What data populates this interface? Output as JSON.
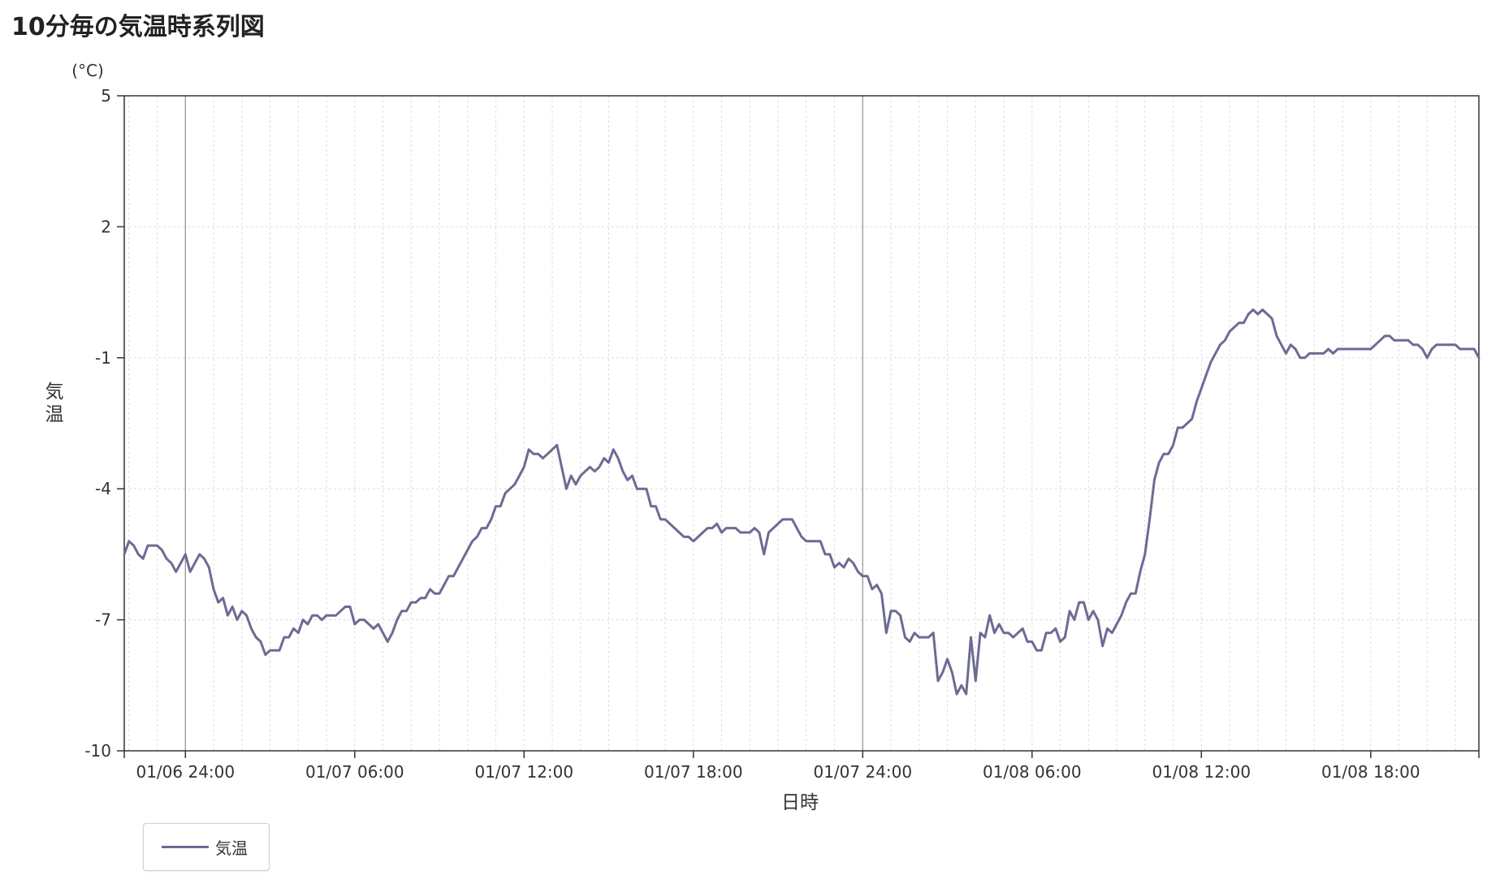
{
  "title": "10分毎の気温時系列図",
  "legend": {
    "label": "気温"
  },
  "chart_data": {
    "type": "line",
    "ylabel": "気温",
    "y_unit": "(°C)",
    "xlabel": "日時",
    "ylim": [
      -10,
      5
    ],
    "y_ticks": [
      5,
      2,
      -1,
      -4,
      -7,
      -10
    ],
    "x_start": "2024-01-06T21:50",
    "x_end": "2024-01-08T21:50",
    "x_interval_minutes": 10,
    "x_ticks": [
      {
        "time": "2024-01-07T00:00",
        "label": "01/06 24:00"
      },
      {
        "time": "2024-01-07T06:00",
        "label": "01/07 06:00"
      },
      {
        "time": "2024-01-07T12:00",
        "label": "01/07 12:00"
      },
      {
        "time": "2024-01-07T18:00",
        "label": "01/07 18:00"
      },
      {
        "time": "2024-01-08T00:00",
        "label": "01/07 24:00"
      },
      {
        "time": "2024-01-08T06:00",
        "label": "01/08 06:00"
      },
      {
        "time": "2024-01-08T12:00",
        "label": "01/08 12:00"
      },
      {
        "time": "2024-01-08T18:00",
        "label": "01/08 18:00"
      }
    ],
    "day_boundaries": [
      "2024-01-07T00:00",
      "2024-01-08T00:00"
    ],
    "grid": true,
    "legend_position": "bottom-left",
    "series": [
      {
        "name": "気温",
        "color": "#6b6b94",
        "values": [
          -5.5,
          -5.2,
          -5.3,
          -5.5,
          -5.6,
          -5.3,
          -5.3,
          -5.3,
          -5.4,
          -5.6,
          -5.7,
          -5.9,
          -5.7,
          -5.5,
          -5.9,
          -5.7,
          -5.5,
          -5.6,
          -5.8,
          -6.3,
          -6.6,
          -6.5,
          -6.9,
          -6.7,
          -7.0,
          -6.8,
          -6.9,
          -7.2,
          -7.4,
          -7.5,
          -7.8,
          -7.7,
          -7.7,
          -7.7,
          -7.4,
          -7.4,
          -7.2,
          -7.3,
          -7.0,
          -7.1,
          -6.9,
          -6.9,
          -7.0,
          -6.9,
          -6.9,
          -6.9,
          -6.8,
          -6.7,
          -6.7,
          -7.1,
          -7.0,
          -7.0,
          -7.1,
          -7.2,
          -7.1,
          -7.3,
          -7.5,
          -7.3,
          -7.0,
          -6.8,
          -6.8,
          -6.6,
          -6.6,
          -6.5,
          -6.5,
          -6.3,
          -6.4,
          -6.4,
          -6.2,
          -6.0,
          -6.0,
          -5.8,
          -5.6,
          -5.4,
          -5.2,
          -5.1,
          -4.9,
          -4.9,
          -4.7,
          -4.4,
          -4.4,
          -4.1,
          -4.0,
          -3.9,
          -3.7,
          -3.5,
          -3.1,
          -3.2,
          -3.2,
          -3.3,
          -3.2,
          -3.1,
          -3.0,
          -3.5,
          -4.0,
          -3.7,
          -3.9,
          -3.7,
          -3.6,
          -3.5,
          -3.6,
          -3.5,
          -3.3,
          -3.4,
          -3.1,
          -3.3,
          -3.6,
          -3.8,
          -3.7,
          -4.0,
          -4.0,
          -4.0,
          -4.4,
          -4.4,
          -4.7,
          -4.7,
          -4.8,
          -4.9,
          -5.0,
          -5.1,
          -5.1,
          -5.2,
          -5.1,
          -5.0,
          -4.9,
          -4.9,
          -4.8,
          -5.0,
          -4.9,
          -4.9,
          -4.9,
          -5.0,
          -5.0,
          -5.0,
          -4.9,
          -5.0,
          -5.5,
          -5.0,
          -4.9,
          -4.8,
          -4.7,
          -4.7,
          -4.7,
          -4.9,
          -5.1,
          -5.2,
          -5.2,
          -5.2,
          -5.2,
          -5.5,
          -5.5,
          -5.8,
          -5.7,
          -5.8,
          -5.6,
          -5.7,
          -5.9,
          -6.0,
          -6.0,
          -6.3,
          -6.2,
          -6.4,
          -7.3,
          -6.8,
          -6.8,
          -6.9,
          -7.4,
          -7.5,
          -7.3,
          -7.4,
          -7.4,
          -7.4,
          -7.3,
          -8.4,
          -8.2,
          -7.9,
          -8.2,
          -8.7,
          -8.5,
          -8.7,
          -7.4,
          -8.4,
          -7.3,
          -7.4,
          -6.9,
          -7.3,
          -7.1,
          -7.3,
          -7.3,
          -7.4,
          -7.3,
          -7.2,
          -7.5,
          -7.5,
          -7.7,
          -7.7,
          -7.3,
          -7.3,
          -7.2,
          -7.5,
          -7.4,
          -6.8,
          -7.0,
          -6.6,
          -6.6,
          -7.0,
          -6.8,
          -7.0,
          -7.6,
          -7.2,
          -7.3,
          -7.1,
          -6.9,
          -6.6,
          -6.4,
          -6.4,
          -5.9,
          -5.5,
          -4.7,
          -3.8,
          -3.4,
          -3.2,
          -3.2,
          -3.0,
          -2.6,
          -2.6,
          -2.5,
          -2.4,
          -2.0,
          -1.7,
          -1.4,
          -1.1,
          -0.9,
          -0.7,
          -0.6,
          -0.4,
          -0.3,
          -0.2,
          -0.2,
          0.0,
          0.1,
          0.0,
          0.1,
          0.0,
          -0.1,
          -0.5,
          -0.7,
          -0.9,
          -0.7,
          -0.8,
          -1.0,
          -1.0,
          -0.9,
          -0.9,
          -0.9,
          -0.9,
          -0.8,
          -0.9,
          -0.8,
          -0.8,
          -0.8,
          -0.8,
          -0.8,
          -0.8,
          -0.8,
          -0.8,
          -0.7,
          -0.6,
          -0.5,
          -0.5,
          -0.6,
          -0.6,
          -0.6,
          -0.6,
          -0.7,
          -0.7,
          -0.8,
          -1.0,
          -0.8,
          -0.7,
          -0.7,
          -0.7,
          -0.7,
          -0.7,
          -0.8,
          -0.8,
          -0.8,
          -0.8,
          -1.0
        ]
      }
    ]
  }
}
